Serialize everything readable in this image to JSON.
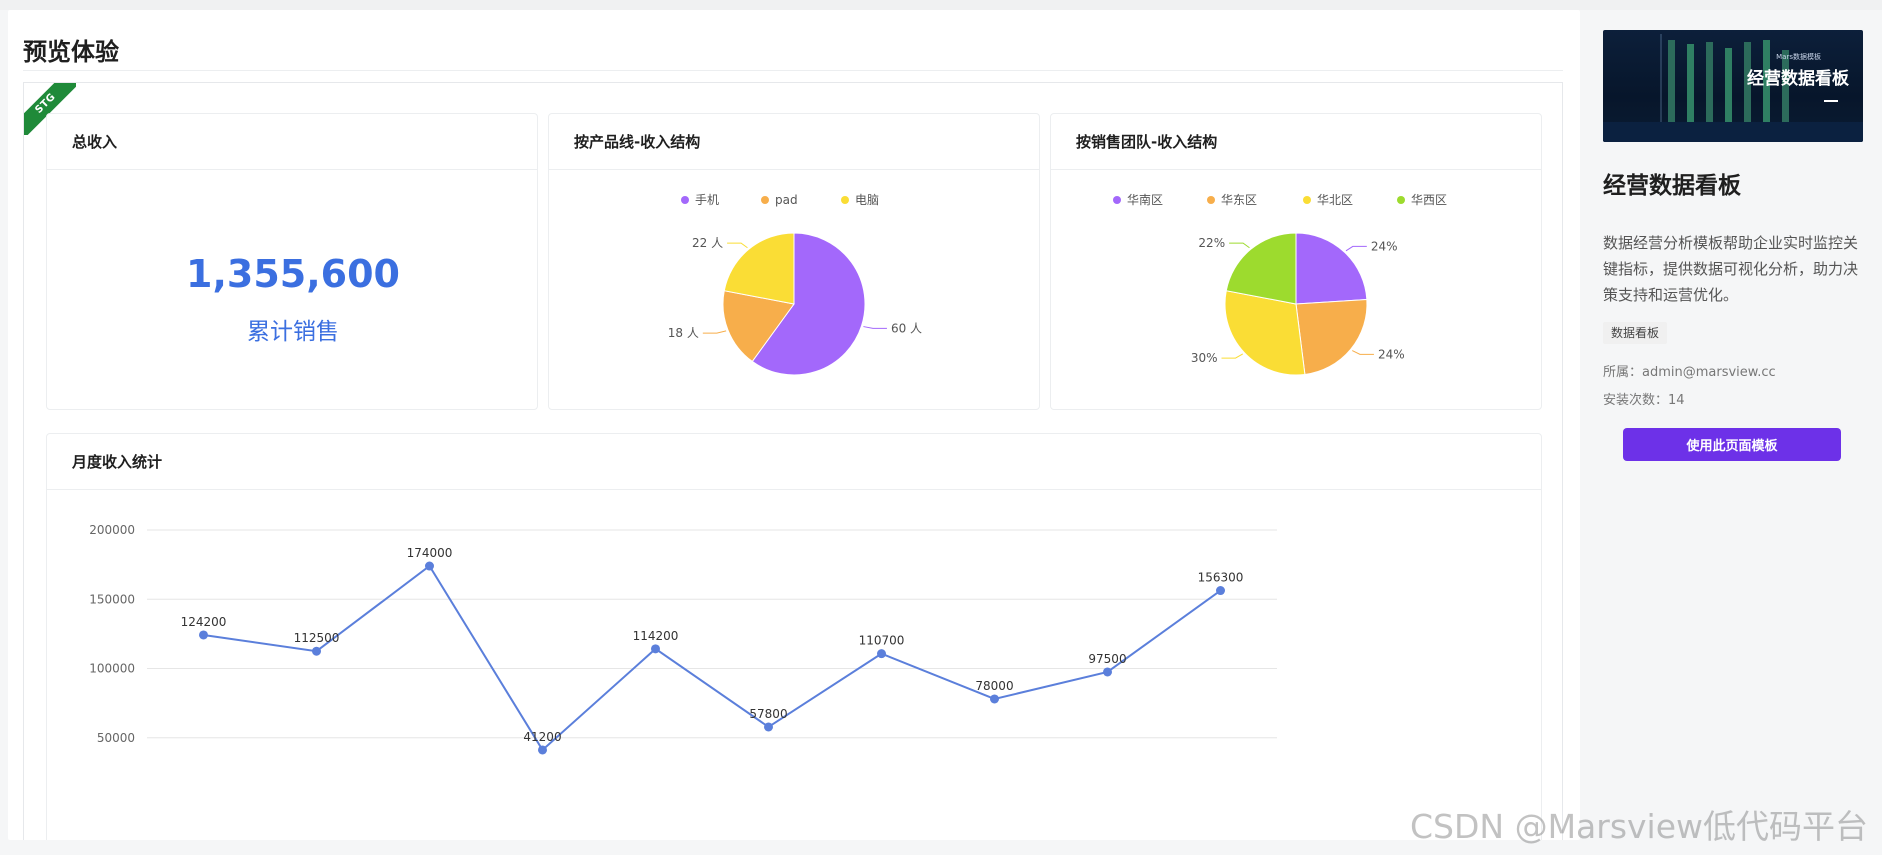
{
  "page": {
    "title": "预览体验",
    "stage_badge": "STG"
  },
  "total_card": {
    "title": "总收入",
    "value": "1,355,600",
    "subtitle": "累计销售"
  },
  "product_card": {
    "title": "按产品线-收入结构",
    "chart_data": {
      "type": "pie",
      "legend_position": "top",
      "slices": [
        {
          "name": "手机",
          "value": 60,
          "label": "60 人",
          "color": "#a368fb"
        },
        {
          "name": "pad",
          "value": 18,
          "label": "18 人",
          "color": "#f7ae4b"
        },
        {
          "name": "电脑",
          "value": 22,
          "label": "22 人",
          "color": "#fadd35"
        }
      ]
    }
  },
  "team_card": {
    "title": "按销售团队-收入结构",
    "chart_data": {
      "type": "pie",
      "legend_position": "top",
      "slices": [
        {
          "name": "华南区",
          "value": 24,
          "label": "24%",
          "color": "#a368fb"
        },
        {
          "name": "华东区",
          "value": 24,
          "label": "24%",
          "color": "#f7ae4b"
        },
        {
          "name": "华北区",
          "value": 30,
          "label": "30%",
          "color": "#fadd35"
        },
        {
          "name": "华西区",
          "value": 22,
          "label": "22%",
          "color": "#9ddb2e"
        }
      ]
    }
  },
  "month_card": {
    "title": "月度收入统计",
    "chart_data": {
      "type": "line",
      "color": "#5b7fdb",
      "grid": true,
      "ylim": [
        0,
        200000
      ],
      "y_ticks": [
        "50000",
        "100000",
        "150000",
        "200000"
      ],
      "values": [
        124200,
        112500,
        174000,
        41200,
        114200,
        57800,
        110700,
        78000,
        97500,
        156300
      ]
    }
  },
  "sidebar": {
    "thumb_title": "经营数据看板",
    "thumb_small": "Mars数据模板",
    "name": "经营数据看板",
    "description": "数据经营分析模板帮助企业实时监控关键指标，提供数据可视化分析，助力决策支持和运营优化。",
    "tag": "数据看板",
    "owner": "所属：admin@marsview.cc",
    "installs": "安装次数：14",
    "use_button": "使用此页面模板"
  },
  "watermark": "CSDN @Marsview低代码平台"
}
